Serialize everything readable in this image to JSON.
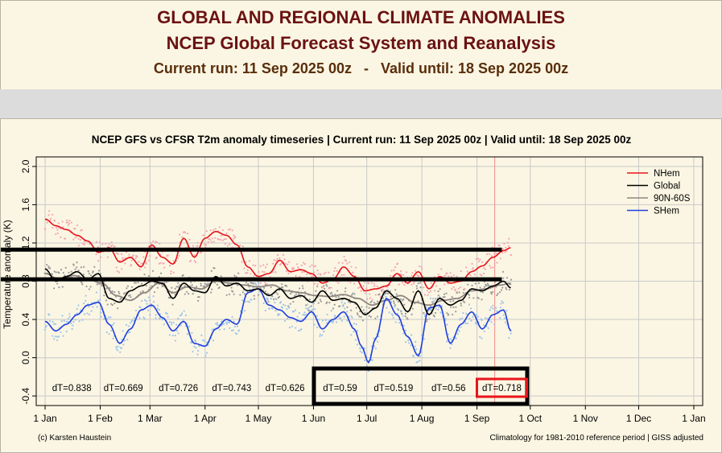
{
  "header": {
    "title_line1": "GLOBAL AND REGIONAL CLIMATE ANOMALIES",
    "title_line2": "NCEP Global Forecast System and Reanalysis",
    "current_run": "Current run: 11 Sep 2025 00z",
    "separator": "-",
    "valid_until": "Valid until: 18 Sep 2025 00z"
  },
  "colors": {
    "nhem": "#e8141a",
    "global": "#000000",
    "band": "#8f8682",
    "shem": "#1f3fe0",
    "nhem_dots": "#f4a6b4",
    "shem_dots": "#9ec4ea",
    "global_dots": "#9a9a9a",
    "highlight": "#e8141a",
    "grid": "#c8c8c8"
  },
  "chart_data": {
    "type": "line",
    "title": "NCEP GFS vs CFSR T2m anomaly timeseries | Current run: 11 Sep 2025 00z | Valid until: 18 Sep 2025 00z",
    "ylabel": "Temperature anomaly (K)",
    "xlabel": "",
    "ylim": [
      -0.5,
      2.1
    ],
    "yticks": [
      "-0.4",
      "0.0",
      "0.4",
      "0.8",
      "1.2",
      "1.6",
      "2.0"
    ],
    "xlim": [
      -5,
      370
    ],
    "xticks": [
      {
        "day": 0,
        "label": "1 Jan"
      },
      {
        "day": 31,
        "label": "1 Feb"
      },
      {
        "day": 59,
        "label": "1 Mar"
      },
      {
        "day": 90,
        "label": "1 Apr"
      },
      {
        "day": 120,
        "label": "1 May"
      },
      {
        "day": 151,
        "label": "1 Jun"
      },
      {
        "day": 181,
        "label": "1 Jul"
      },
      {
        "day": 212,
        "label": "1 Aug"
      },
      {
        "day": 243,
        "label": "1 Sep"
      },
      {
        "day": 273,
        "label": "1 Oct"
      },
      {
        "day": 304,
        "label": "1 Nov"
      },
      {
        "day": 334,
        "label": "1 Dec"
      },
      {
        "day": 365,
        "label": "1 Jan"
      }
    ],
    "current_run_day": 253,
    "legend": [
      "NHem",
      "Global",
      "90N-60S",
      "SHem"
    ],
    "legend_position": "top-right",
    "series": [
      {
        "name": "NHem",
        "key": "nhem",
        "x": [
          0,
          6,
          12,
          18,
          24,
          30,
          36,
          42,
          48,
          54,
          60,
          66,
          72,
          78,
          84,
          90,
          96,
          102,
          108,
          114,
          120,
          126,
          132,
          138,
          144,
          150,
          156,
          162,
          168,
          174,
          180,
          186,
          192,
          198,
          204,
          210,
          216,
          222,
          228,
          234,
          240,
          246,
          252,
          258,
          262
        ],
        "y": [
          1.45,
          1.38,
          1.34,
          1.28,
          1.22,
          1.1,
          1.15,
          1.0,
          1.05,
          0.95,
          1.18,
          1.05,
          0.98,
          1.25,
          1.05,
          1.25,
          1.32,
          1.28,
          1.18,
          0.95,
          0.85,
          0.88,
          1.02,
          0.9,
          0.92,
          0.88,
          0.78,
          0.82,
          0.95,
          0.85,
          0.7,
          0.72,
          0.75,
          0.88,
          0.78,
          0.9,
          0.72,
          0.85,
          0.78,
          0.8,
          0.9,
          0.96,
          1.05,
          1.12,
          1.15
        ]
      },
      {
        "name": "Global",
        "key": "global",
        "x": [
          0,
          6,
          12,
          18,
          24,
          30,
          36,
          42,
          48,
          54,
          60,
          66,
          72,
          78,
          84,
          90,
          96,
          102,
          108,
          114,
          120,
          126,
          132,
          138,
          144,
          150,
          156,
          162,
          168,
          174,
          180,
          186,
          192,
          198,
          204,
          210,
          216,
          222,
          228,
          234,
          240,
          246,
          252,
          258,
          262
        ],
        "y": [
          0.93,
          0.8,
          0.85,
          0.9,
          0.82,
          0.88,
          0.62,
          0.58,
          0.7,
          0.75,
          0.8,
          0.78,
          0.62,
          0.78,
          0.7,
          0.68,
          0.85,
          0.75,
          0.78,
          0.7,
          0.72,
          0.65,
          0.72,
          0.62,
          0.65,
          0.58,
          0.7,
          0.6,
          0.62,
          0.58,
          0.45,
          0.52,
          0.7,
          0.62,
          0.48,
          0.7,
          0.45,
          0.62,
          0.55,
          0.6,
          0.72,
          0.7,
          0.75,
          0.8,
          0.73
        ]
      },
      {
        "name": "90N-60S",
        "key": "band",
        "x": [
          0,
          8,
          16,
          24,
          32,
          40,
          48,
          56,
          64,
          72,
          80,
          88,
          96,
          104,
          112,
          120,
          128,
          136,
          144,
          152,
          160,
          168,
          176,
          184,
          192,
          200,
          208,
          216,
          224,
          232,
          240,
          248,
          256,
          262
        ],
        "y": [
          0.88,
          0.82,
          0.86,
          0.82,
          0.78,
          0.65,
          0.6,
          0.68,
          0.78,
          0.68,
          0.74,
          0.72,
          0.8,
          0.78,
          0.76,
          0.74,
          0.76,
          0.7,
          0.68,
          0.65,
          0.64,
          0.66,
          0.62,
          0.55,
          0.6,
          0.65,
          0.58,
          0.55,
          0.6,
          0.62,
          0.7,
          0.72,
          0.76,
          0.78
        ]
      },
      {
        "name": "SHem",
        "key": "shem",
        "x": [
          0,
          6,
          12,
          18,
          24,
          30,
          36,
          42,
          48,
          54,
          60,
          66,
          72,
          78,
          84,
          90,
          96,
          102,
          108,
          114,
          120,
          126,
          132,
          138,
          144,
          150,
          156,
          162,
          168,
          174,
          178,
          182,
          186,
          192,
          198,
          204,
          210,
          216,
          222,
          228,
          234,
          240,
          246,
          252,
          258,
          262
        ],
        "y": [
          0.38,
          0.28,
          0.35,
          0.45,
          0.55,
          0.58,
          0.35,
          0.15,
          0.3,
          0.5,
          0.55,
          0.42,
          0.28,
          0.38,
          0.15,
          0.12,
          0.3,
          0.4,
          0.35,
          0.68,
          0.72,
          0.55,
          0.5,
          0.42,
          0.38,
          0.48,
          0.3,
          0.4,
          0.48,
          0.3,
          0.12,
          -0.05,
          0.2,
          0.62,
          0.45,
          0.22,
          0.02,
          0.52,
          0.55,
          0.15,
          0.35,
          0.48,
          0.3,
          0.45,
          0.5,
          0.28
        ]
      }
    ],
    "dt_labels": [
      "dT=0.838",
      "dT=0.669",
      "dT=0.726",
      "dT=0.743",
      "dT=0.626",
      "dT=0.59",
      "dT=0.519",
      "dT=0.56",
      "dT=0.718"
    ],
    "dt_days": [
      15,
      44,
      75,
      105,
      135,
      166,
      196,
      227,
      257
    ],
    "annotation_lines_y": [
      1.13,
      0.82
    ],
    "highlight_box_month": "Jun-Sep",
    "highlight_dt_index": 8,
    "footer_left": "(c) Karsten Haustein",
    "footer_right": "Climatology for 1981-2010 reference period | GISS adjusted"
  }
}
